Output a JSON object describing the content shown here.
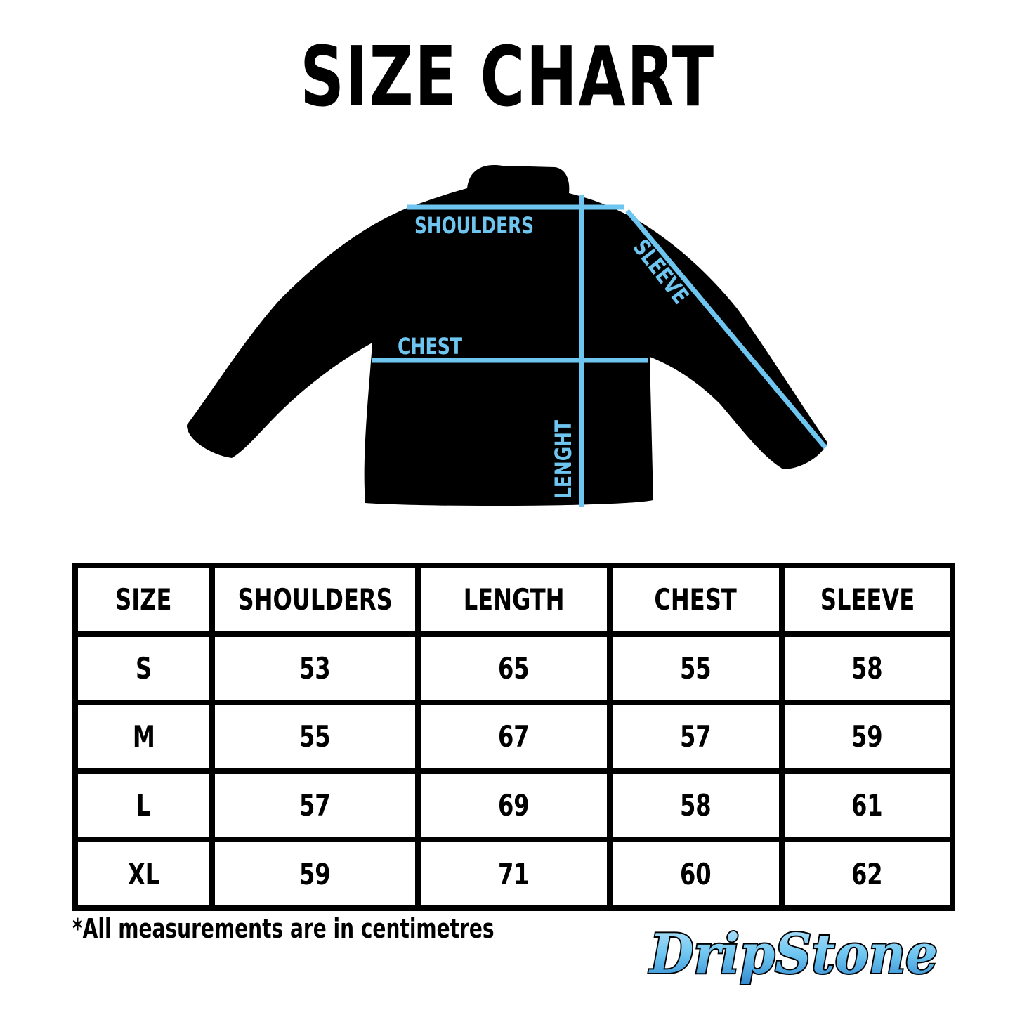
{
  "title": "SIZE CHART",
  "diagram": {
    "labels": {
      "shoulders": "SHOULDERS",
      "sleeve": "SLEEVE",
      "chest": "CHEST",
      "length": "LENGHT"
    },
    "line_color": "#6ec6f0"
  },
  "table": {
    "headers": [
      "SIZE",
      "SHOULDERS",
      "LENGTH",
      "CHEST",
      "SLEEVE"
    ],
    "rows": [
      [
        "S",
        "53",
        "65",
        "55",
        "58"
      ],
      [
        "M",
        "55",
        "67",
        "57",
        "59"
      ],
      [
        "L",
        "57",
        "69",
        "58",
        "61"
      ],
      [
        "XL",
        "59",
        "71",
        "60",
        "62"
      ]
    ]
  },
  "note": "*All measurements are in centimetres",
  "logo": {
    "text": "DripStone",
    "colors": [
      "#4aa8e8",
      "#b9e3fb",
      "#000000"
    ]
  }
}
